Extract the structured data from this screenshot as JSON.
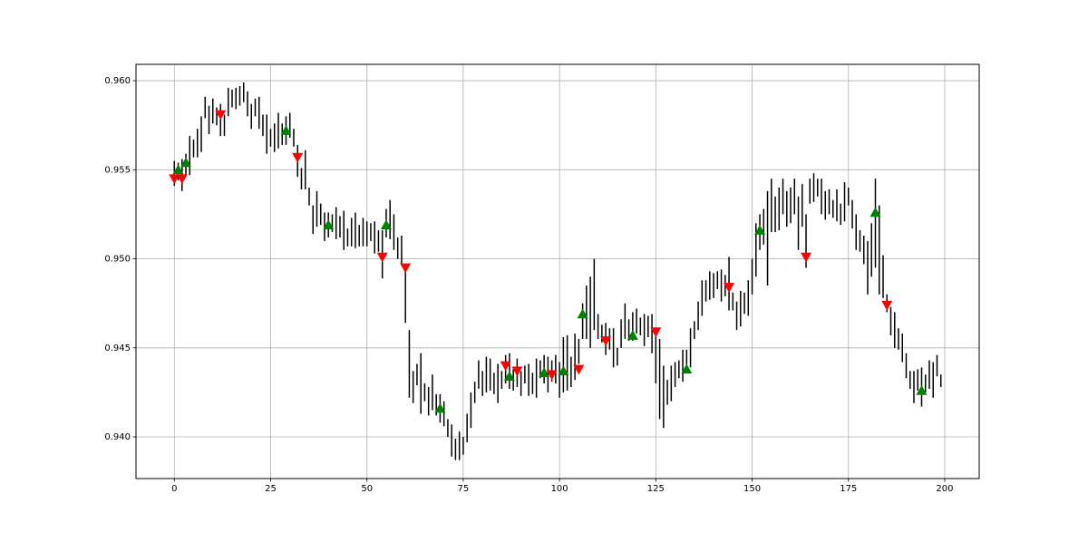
{
  "chart_data": {
    "type": "ohlc",
    "color": "#000000",
    "x": [
      0,
      1,
      2,
      3,
      4,
      5,
      6,
      7,
      8,
      9,
      10,
      11,
      12,
      13,
      14,
      15,
      16,
      17,
      18,
      19,
      20,
      21,
      22,
      23,
      24,
      25,
      26,
      27,
      28,
      29,
      30,
      31,
      32,
      33,
      34,
      35,
      36,
      37,
      38,
      39,
      40,
      41,
      42,
      43,
      44,
      45,
      46,
      47,
      48,
      49,
      50,
      51,
      52,
      53,
      54,
      55,
      56,
      57,
      58,
      59,
      60,
      61,
      62,
      63,
      64,
      65,
      66,
      67,
      68,
      69,
      70,
      71,
      72,
      73,
      74,
      75,
      76,
      77,
      78,
      79,
      80,
      81,
      82,
      83,
      84,
      85,
      86,
      87,
      88,
      89,
      90,
      91,
      92,
      93,
      94,
      95,
      96,
      97,
      98,
      99,
      100,
      101,
      102,
      103,
      104,
      105,
      106,
      107,
      108,
      109,
      110,
      111,
      112,
      113,
      114,
      115,
      116,
      117,
      118,
      119,
      120,
      121,
      122,
      123,
      124,
      125,
      126,
      127,
      128,
      129,
      130,
      131,
      132,
      133,
      134,
      135,
      136,
      137,
      138,
      139,
      140,
      141,
      142,
      143,
      144,
      145,
      146,
      147,
      148,
      149,
      150,
      151,
      152,
      153,
      154,
      155,
      156,
      157,
      158,
      159,
      160,
      161,
      162,
      163,
      164,
      165,
      166,
      167,
      168,
      169,
      170,
      171,
      172,
      173,
      174,
      175,
      176,
      177,
      178,
      179,
      180,
      181,
      182,
      183,
      184,
      185,
      186,
      187,
      188,
      189,
      190,
      191,
      192,
      193,
      194,
      195,
      196,
      197,
      198,
      199
    ],
    "high": [
      0.9555,
      0.9554,
      0.9556,
      0.9559,
      0.9569,
      0.9567,
      0.9573,
      0.958,
      0.9591,
      0.9586,
      0.959,
      0.9585,
      0.9587,
      0.9581,
      0.9596,
      0.9595,
      0.9596,
      0.9597,
      0.9599,
      0.9594,
      0.9587,
      0.959,
      0.9591,
      0.9581,
      0.9581,
      0.9573,
      0.9576,
      0.9582,
      0.9576,
      0.958,
      0.9582,
      0.9573,
      0.9564,
      0.9551,
      0.9561,
      0.954,
      0.953,
      0.9538,
      0.9531,
      0.9526,
      0.9526,
      0.9525,
      0.9529,
      0.9524,
      0.9527,
      0.9517,
      0.9523,
      0.9526,
      0.9519,
      0.9523,
      0.9521,
      0.952,
      0.9521,
      0.9516,
      0.9516,
      0.9528,
      0.9533,
      0.9525,
      0.9512,
      0.9513,
      0.9496,
      0.946,
      0.9437,
      0.9441,
      0.9447,
      0.943,
      0.9428,
      0.9435,
      0.9424,
      0.9424,
      0.942,
      0.941,
      0.9407,
      0.9399,
      0.9403,
      0.94,
      0.9413,
      0.9425,
      0.9431,
      0.9443,
      0.9437,
      0.9445,
      0.9444,
      0.9436,
      0.9441,
      0.9437,
      0.9446,
      0.9447,
      0.9438,
      0.9444,
      0.9437,
      0.944,
      0.9441,
      0.9436,
      0.9444,
      0.9443,
      0.9446,
      0.9445,
      0.9443,
      0.9446,
      0.9442,
      0.9456,
      0.9457,
      0.9445,
      0.9458,
      0.9455,
      0.9475,
      0.9485,
      0.949,
      0.95,
      0.9469,
      0.9463,
      0.9464,
      0.9461,
      0.9461,
      0.945,
      0.9466,
      0.9475,
      0.9466,
      0.947,
      0.9472,
      0.9467,
      0.9469,
      0.9468,
      0.9469,
      0.946,
      0.9455,
      0.944,
      0.9432,
      0.944,
      0.9442,
      0.9443,
      0.9449,
      0.9449,
      0.9461,
      0.9465,
      0.9476,
      0.9488,
      0.9488,
      0.9493,
      0.9492,
      0.9493,
      0.9494,
      0.9491,
      0.9501,
      0.9481,
      0.9476,
      0.9482,
      0.9481,
      0.9488,
      0.95,
      0.952,
      0.9525,
      0.9528,
      0.9538,
      0.9545,
      0.9535,
      0.954,
      0.9545,
      0.9538,
      0.954,
      0.9545,
      0.9535,
      0.9542,
      0.9525,
      0.9545,
      0.9548,
      0.9545,
      0.9545,
      0.9538,
      0.9539,
      0.9533,
      0.9539,
      0.9531,
      0.9543,
      0.954,
      0.9533,
      0.9525,
      0.9516,
      0.9513,
      0.951,
      0.952,
      0.9545,
      0.953,
      0.9502,
      0.948,
      0.9473,
      0.947,
      0.9461,
      0.9458,
      0.9447,
      0.9437,
      0.9437,
      0.9438,
      0.9439,
      0.9435,
      0.9443,
      0.9442,
      0.9446,
      0.9435
    ],
    "low": [
      0.9541,
      0.9544,
      0.9538,
      0.9547,
      0.9547,
      0.9557,
      0.9557,
      0.956,
      0.9579,
      0.957,
      0.9576,
      0.9575,
      0.9569,
      0.9569,
      0.958,
      0.9585,
      0.9584,
      0.9586,
      0.9588,
      0.958,
      0.9573,
      0.958,
      0.9573,
      0.9569,
      0.9559,
      0.9563,
      0.956,
      0.9562,
      0.9564,
      0.9564,
      0.9568,
      0.9563,
      0.9546,
      0.9539,
      0.9539,
      0.953,
      0.9514,
      0.9518,
      0.9519,
      0.951,
      0.9512,
      0.9515,
      0.9511,
      0.9512,
      0.9505,
      0.9507,
      0.9507,
      0.9506,
      0.9507,
      0.9507,
      0.9507,
      0.951,
      0.9503,
      0.9504,
      0.9489,
      0.9512,
      0.9511,
      0.9505,
      0.95,
      0.9497,
      0.9464,
      0.9422,
      0.9419,
      0.9429,
      0.9413,
      0.942,
      0.9412,
      0.9415,
      0.9412,
      0.9408,
      0.9406,
      0.94,
      0.9389,
      0.9387,
      0.9387,
      0.939,
      0.9397,
      0.9405,
      0.9419,
      0.9427,
      0.9423,
      0.9425,
      0.9426,
      0.9424,
      0.9419,
      0.9427,
      0.943,
      0.9427,
      0.9426,
      0.9428,
      0.9423,
      0.943,
      0.9423,
      0.9424,
      0.9422,
      0.9433,
      0.943,
      0.9425,
      0.9431,
      0.943,
      0.9422,
      0.9425,
      0.9426,
      0.9428,
      0.9432,
      0.9441,
      0.9455,
      0.9455,
      0.945,
      0.946,
      0.9455,
      0.9453,
      0.9446,
      0.9449,
      0.9439,
      0.944,
      0.945,
      0.9455,
      0.9454,
      0.9454,
      0.9458,
      0.9457,
      0.9451,
      0.9456,
      0.9447,
      0.943,
      0.941,
      0.9405,
      0.9418,
      0.942,
      0.9428,
      0.9433,
      0.9431,
      0.9437,
      0.9439,
      0.9455,
      0.946,
      0.9468,
      0.9476,
      0.9477,
      0.9478,
      0.9483,
      0.9476,
      0.9479,
      0.9471,
      0.9471,
      0.946,
      0.9462,
      0.9469,
      0.9468,
      0.948,
      0.949,
      0.9505,
      0.9508,
      0.9485,
      0.9515,
      0.9515,
      0.9516,
      0.9525,
      0.9518,
      0.952,
      0.9525,
      0.9505,
      0.9518,
      0.9495,
      0.9531,
      0.9532,
      0.9535,
      0.9525,
      0.9522,
      0.9525,
      0.9523,
      0.9521,
      0.9519,
      0.9521,
      0.953,
      0.9517,
      0.9505,
      0.9504,
      0.9497,
      0.948,
      0.949,
      0.9495,
      0.948,
      0.9478,
      0.947,
      0.9457,
      0.945,
      0.9449,
      0.9442,
      0.9433,
      0.9427,
      0.9419,
      0.9426,
      0.9417,
      0.9425,
      0.9427,
      0.9422,
      0.9434,
      0.9428
    ],
    "markers": [
      {
        "marker": "^",
        "color": "#008000",
        "x": [
          1,
          3,
          29,
          40,
          55,
          69,
          87,
          96,
          101,
          106,
          119,
          133,
          152,
          182,
          194
        ],
        "values": [
          0.955,
          0.9554,
          0.9572,
          0.9519,
          0.9519,
          0.9416,
          0.9434,
          0.9436,
          0.9437,
          0.9469,
          0.9457,
          0.9438,
          0.9516,
          0.9526,
          0.9426
        ]
      },
      {
        "marker": "v",
        "color": "#ff0000",
        "x": [
          0,
          2,
          12,
          32,
          54,
          60,
          86,
          89,
          98,
          105,
          112,
          125,
          144,
          164,
          185
        ],
        "values": [
          0.9545,
          0.9545,
          0.9581,
          0.9557,
          0.9501,
          0.9495,
          0.944,
          0.9437,
          0.9435,
          0.9438,
          0.9454,
          0.9459,
          0.9484,
          0.9501,
          0.9474
        ]
      }
    ],
    "xlim": [
      -9.95,
      208.95
    ],
    "xticks": [
      0,
      25,
      50,
      75,
      100,
      125,
      150,
      175,
      200
    ],
    "ylim": [
      0.93766,
      0.96092
    ],
    "yticks": [
      {
        "value": 0.94,
        "label": "0.940"
      },
      {
        "value": 0.945,
        "label": "0.945"
      },
      {
        "value": 0.95,
        "label": "0.950"
      },
      {
        "value": 0.955,
        "label": "0.955"
      },
      {
        "value": 0.96,
        "label": "0.960"
      }
    ],
    "grid": true
  }
}
